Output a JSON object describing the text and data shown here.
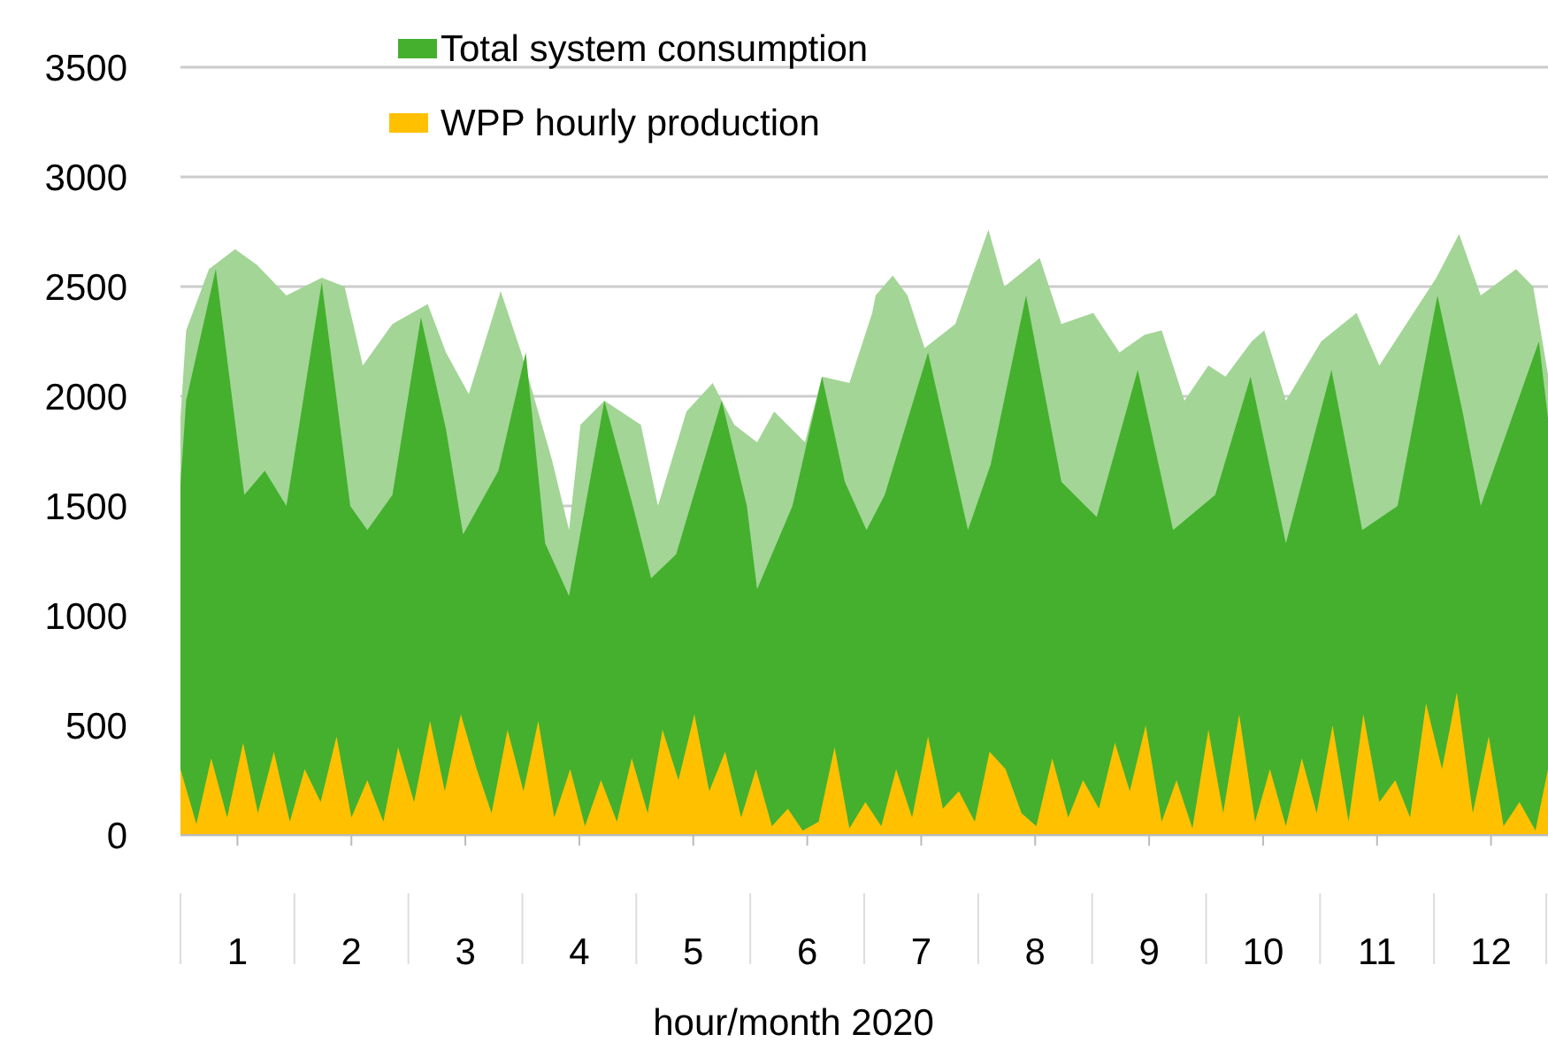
{
  "chart_data": {
    "type": "area",
    "xlabel": "hour/month 2020",
    "xlim": [
      0.5,
      12.5
    ],
    "xticks": [
      1,
      2,
      3,
      4,
      5,
      6,
      7,
      8,
      9,
      10,
      11,
      12
    ],
    "ylim": [
      0,
      3500
    ],
    "yticks": [
      0,
      500,
      1000,
      1500,
      2000,
      2500,
      3000,
      3500
    ],
    "grid": "y",
    "legend": "top",
    "series": [
      {
        "color": "#a3d596",
        "x": [
          0.5,
          0.55,
          0.75,
          0.98,
          1.17,
          1.43,
          1.74,
          1.94,
          2.1,
          2.36,
          2.67,
          2.83,
          3.03,
          3.31,
          3.49,
          3.76,
          3.91,
          4.01,
          4.22,
          4.54,
          4.69,
          4.94,
          5.17,
          5.36,
          5.56,
          5.71,
          5.98,
          6.13,
          6.37,
          6.57,
          6.6,
          6.75,
          6.88,
          7.03,
          7.3,
          7.59,
          7.73,
          8.04,
          8.23,
          8.51,
          8.74,
          8.96,
          9.11,
          9.31,
          9.52,
          9.67,
          9.9,
          10.01,
          10.2,
          10.51,
          10.82,
          11.02,
          11.22,
          11.52,
          11.72,
          11.91,
          12.22,
          12.37,
          12.5
        ],
        "values": [
          1900,
          2300,
          2580,
          2670,
          2600,
          2460,
          2540,
          2500,
          2140,
          2330,
          2420,
          2200,
          2010,
          2480,
          2200,
          1710,
          1390,
          1870,
          1980,
          1870,
          1500,
          1930,
          2060,
          1870,
          1790,
          1930,
          1790,
          2090,
          2060,
          2380,
          2460,
          2550,
          2460,
          2220,
          2330,
          2760,
          2500,
          2630,
          2330,
          2380,
          2200,
          2280,
          2300,
          1980,
          2140,
          2090,
          2250,
          2300,
          1980,
          2250,
          2380,
          2140,
          2300,
          2540,
          2740,
          2460,
          2580,
          2500,
          2100
        ]
      },
      {
        "name": "Total system consumption",
        "color": "#44b02e",
        "x": [
          0.5,
          0.55,
          0.81,
          1.06,
          1.24,
          1.43,
          1.74,
          1.99,
          2.14,
          2.36,
          2.61,
          2.83,
          2.98,
          3.29,
          3.53,
          3.7,
          3.91,
          4.22,
          4.47,
          4.63,
          4.85,
          5.25,
          5.47,
          5.56,
          5.87,
          6.13,
          6.33,
          6.52,
          6.68,
          7.06,
          7.41,
          7.61,
          7.92,
          8.23,
          8.54,
          8.9,
          9.21,
          9.58,
          9.89,
          10.2,
          10.6,
          10.87,
          11.18,
          11.53,
          11.75,
          11.91,
          12.42,
          12.5
        ],
        "values": [
          1600,
          1980,
          2580,
          1550,
          1660,
          1500,
          2520,
          1500,
          1390,
          1550,
          2360,
          1850,
          1370,
          1660,
          2200,
          1330,
          1090,
          1980,
          1500,
          1170,
          1280,
          1980,
          1500,
          1120,
          1500,
          2090,
          1610,
          1390,
          1550,
          2200,
          1390,
          1690,
          2460,
          1610,
          1450,
          2120,
          1390,
          1550,
          2090,
          1330,
          2120,
          1390,
          1500,
          2460,
          1930,
          1500,
          2250,
          1900
        ]
      },
      {
        "name": "WPP hourly production",
        "color": "#ffc000",
        "x": [
          0.5,
          0.64,
          0.77,
          0.91,
          1.05,
          1.18,
          1.32,
          1.46,
          1.59,
          1.73,
          1.87,
          2.0,
          2.14,
          2.28,
          2.41,
          2.55,
          2.69,
          2.82,
          2.96,
          3.1,
          3.23,
          3.37,
          3.51,
          3.64,
          3.78,
          3.92,
          4.05,
          4.19,
          4.33,
          4.46,
          4.6,
          4.73,
          4.87,
          5.01,
          5.14,
          5.28,
          5.42,
          5.55,
          5.69,
          5.83,
          5.96,
          6.1,
          6.24,
          6.37,
          6.51,
          6.65,
          6.78,
          6.92,
          7.06,
          7.19,
          7.33,
          7.47,
          7.6,
          7.74,
          7.88,
          8.01,
          8.15,
          8.29,
          8.42,
          8.56,
          8.7,
          8.83,
          8.97,
          9.11,
          9.24,
          9.38,
          9.52,
          9.65,
          9.79,
          9.93,
          10.06,
          10.2,
          10.34,
          10.47,
          10.61,
          10.75,
          10.88,
          11.02,
          11.16,
          11.29,
          11.43,
          11.57,
          11.7,
          11.84,
          11.98,
          12.11,
          12.25,
          12.39,
          12.5
        ],
        "values": [
          300,
          50,
          350,
          80,
          420,
          100,
          380,
          60,
          300,
          150,
          450,
          80,
          250,
          60,
          400,
          150,
          520,
          200,
          550,
          300,
          100,
          480,
          200,
          520,
          80,
          300,
          40,
          250,
          60,
          350,
          100,
          480,
          250,
          550,
          200,
          380,
          80,
          300,
          40,
          120,
          20,
          60,
          400,
          30,
          150,
          40,
          300,
          80,
          450,
          120,
          200,
          60,
          380,
          300,
          100,
          40,
          350,
          80,
          250,
          120,
          420,
          200,
          500,
          60,
          250,
          30,
          480,
          100,
          550,
          60,
          300,
          40,
          350,
          100,
          500,
          60,
          550,
          150,
          250,
          80,
          600,
          300,
          650,
          100,
          450,
          40,
          150,
          20,
          300
        ]
      }
    ]
  }
}
